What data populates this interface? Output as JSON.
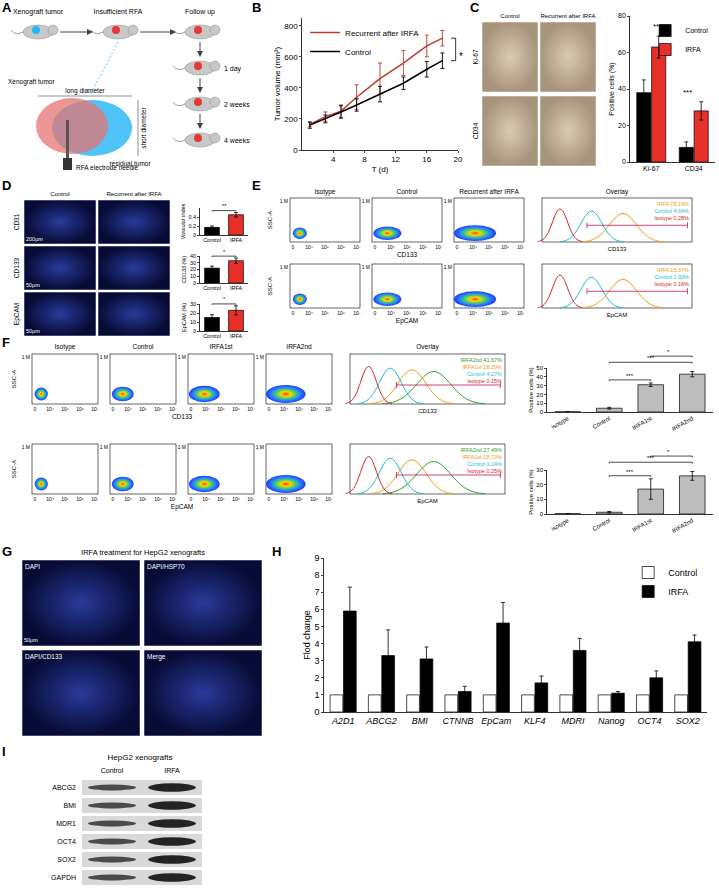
{
  "chart_data": [
    {
      "type": "line",
      "x_label": "T (d)",
      "y_label": "Tumor volume (mm³)",
      "x": [
        1,
        3,
        5,
        7,
        10,
        13,
        16,
        18
      ],
      "series": [
        {
          "name": "Recurrent after IRFA",
          "color": "#c0392b",
          "values": [
            165,
            215,
            250,
            340,
            460,
            560,
            670,
            720
          ],
          "errors": [
            15,
            30,
            40,
            80,
            100,
            80,
            70,
            50
          ]
        },
        {
          "name": "Control",
          "color": "#000000",
          "values": [
            160,
            200,
            245,
            290,
            360,
            430,
            520,
            575
          ],
          "errors": [
            20,
            25,
            40,
            40,
            50,
            40,
            50,
            50
          ]
        }
      ],
      "xlim": [
        0,
        20
      ],
      "xticks": [
        4,
        8,
        12,
        16,
        20
      ],
      "ylim": [
        0,
        850
      ],
      "yticks": [
        0,
        200,
        400,
        600,
        800
      ],
      "grid": false,
      "legend": "upper left",
      "annotations": [
        {
          "text": "*",
          "from": "Control",
          "to": "Recurrent after IRFA"
        }
      ]
    },
    {
      "type": "bar",
      "y_label": "Positive cells (%)",
      "categories": [
        "Ki-67",
        "CD34"
      ],
      "series": [
        {
          "name": "Control",
          "color": "#000000",
          "values": [
            38,
            8
          ],
          "errors": [
            7,
            3
          ]
        },
        {
          "name": "IRFA",
          "color": "#e8302a",
          "values": [
            63,
            28
          ],
          "errors": [
            6,
            5
          ]
        }
      ],
      "ylim": [
        0,
        80
      ],
      "yticks": [
        0,
        20,
        40,
        60,
        80
      ],
      "grid": false,
      "legend": "upper right",
      "annotations": [
        {
          "text": "**",
          "category": "Ki-67"
        },
        {
          "text": "***",
          "category": "CD34"
        }
      ]
    },
    {
      "type": "bar",
      "y_label": "Vascular index",
      "categories": [
        "Control",
        "IRFA"
      ],
      "values": [
        0.17,
        0.45
      ],
      "errors": [
        0.03,
        0.05
      ],
      "colors": [
        "#000000",
        "#e8302a"
      ],
      "ylim": [
        0,
        0.6
      ],
      "yticks": [
        0,
        0.2,
        0.4
      ],
      "grid": false,
      "annotations": [
        {
          "text": "**",
          "from": "Control",
          "to": "IRFA"
        }
      ]
    },
    {
      "type": "bar",
      "y_label": "CD133 (%)",
      "categories": [
        "Control",
        "IRFA"
      ],
      "values": [
        22,
        33
      ],
      "errors": [
        3,
        4
      ],
      "colors": [
        "#000000",
        "#e8302a"
      ],
      "ylim": [
        0,
        40
      ],
      "yticks": [
        0,
        10,
        20,
        30,
        40
      ],
      "grid": false,
      "annotations": [
        {
          "text": "*",
          "from": "Control",
          "to": "IRFA"
        }
      ]
    },
    {
      "type": "bar",
      "y_label": "EpCAM (%)",
      "categories": [
        "Control",
        "IRFA"
      ],
      "values": [
        15,
        23
      ],
      "errors": [
        3,
        5
      ],
      "colors": [
        "#000000",
        "#e8302a"
      ],
      "ylim": [
        0,
        30
      ],
      "yticks": [
        0,
        10,
        20,
        30
      ],
      "grid": false,
      "annotations": [
        {
          "text": "*",
          "from": "Control",
          "to": "IRFA"
        }
      ]
    },
    {
      "type": "bar",
      "y_label": "Positive cells (%)",
      "categories": [
        "isotype",
        "Control",
        "IRFA1st",
        "IRFA2nd"
      ],
      "values": [
        0.2,
        4.3,
        31,
        43
      ],
      "errors": [
        0.1,
        1,
        2,
        3
      ],
      "color": "#bdbdbd",
      "ylim": [
        0,
        50
      ],
      "yticks": [
        0,
        10,
        20,
        30,
        40,
        50
      ],
      "grid": false,
      "annotations": [
        {
          "text": "***",
          "from": "Control",
          "to": "IRFA1st"
        },
        {
          "text": "***",
          "from": "Control",
          "to": "IRFA2nd"
        },
        {
          "text": "*",
          "from": "IRFA1st",
          "to": "IRFA2nd"
        }
      ]
    },
    {
      "type": "bar",
      "y_label": "Positive cells (%)",
      "categories": [
        "isotype",
        "Control",
        "IRFA1st",
        "IRFA2nd"
      ],
      "values": [
        0.2,
        1.2,
        17,
        26
      ],
      "errors": [
        0.1,
        0.5,
        7,
        3
      ],
      "color": "#bdbdbd",
      "ylim": [
        0,
        30
      ],
      "yticks": [
        0,
        10,
        20,
        30
      ],
      "grid": false,
      "annotations": [
        {
          "text": "***",
          "from": "Control",
          "to": "IRFA1st"
        },
        {
          "text": "***",
          "from": "Control",
          "to": "IRFA2nd"
        },
        {
          "text": "*",
          "from": "IRFA1st",
          "to": "IRFA2nd"
        }
      ]
    },
    {
      "type": "bar",
      "y_label": "Flod change",
      "categories": [
        "A2D1",
        "ABCG2",
        "BMI",
        "CTNNB",
        "EpCam",
        "KLF4",
        "MDRI",
        "Nanog",
        "OCT4",
        "SOX2"
      ],
      "series": [
        {
          "name": "Control",
          "color": "#ffffff",
          "values": [
            1,
            1,
            1,
            1,
            1,
            1,
            1,
            1,
            1,
            1
          ]
        },
        {
          "name": "IRFA",
          "color": "#000000",
          "values": [
            5.9,
            3.3,
            3.1,
            1.2,
            5.2,
            1.7,
            3.6,
            1.1,
            2.0,
            4.1
          ],
          "errors": [
            1.4,
            1.5,
            0.7,
            0.3,
            1.2,
            0.4,
            0.7,
            0.1,
            0.4,
            0.4
          ]
        }
      ],
      "ylim": [
        0,
        9
      ],
      "yticks": [
        0,
        1,
        2,
        3,
        4,
        5,
        6,
        7,
        8,
        9
      ],
      "grid": false,
      "legend": "upper right"
    }
  ],
  "panel_labels": [
    "A",
    "B",
    "C",
    "D",
    "E",
    "F",
    "G",
    "H",
    "I"
  ],
  "diagram_A": {
    "steps": [
      "Xenograft tumor",
      "Insufficient RFA",
      "Follow up"
    ],
    "timepoints": [
      "1 day",
      "2 weeks",
      "4 weeks"
    ],
    "tumor_title": "Xenograft tumor",
    "long": "long diameter",
    "short": "short diameter",
    "residual": "residual tumor",
    "needle": "RFA electrode needle"
  },
  "images_C": {
    "columns": [
      "Control",
      "Recurrent after IRFA"
    ],
    "rows": [
      "Ki-67",
      "CD34"
    ]
  },
  "images_D": {
    "columns": [
      "Control",
      "Recurrent after IRFA"
    ],
    "rows": [
      "CD31",
      "CD133",
      "EpCAM"
    ],
    "scale_bars": [
      "200μm",
      "50μm",
      "50μm"
    ]
  },
  "flow_E": {
    "y_label": "SSC-A",
    "y_tick": "1 M",
    "x_ticks": [
      "0",
      "10⁴",
      "10⁵",
      "10⁶",
      "10⁷"
    ],
    "columns": [
      "Isotype",
      "Control",
      "Recurrent after IRFA"
    ],
    "overlay_title": "Overlay",
    "rows": [
      {
        "marker": "CD133",
        "overlay": [
          {
            "label": "IRFA 28.19%",
            "color": "#f39c12"
          },
          {
            "label": "Control 4.64%",
            "color": "#17becf"
          },
          {
            "label": "Isotype 0.28%",
            "color": "#d62728"
          }
        ]
      },
      {
        "marker": "EpCAM",
        "overlay": [
          {
            "label": "IRFA 15.37%",
            "color": "#f39c12"
          },
          {
            "label": "Control 1.93%",
            "color": "#17becf"
          },
          {
            "label": "Isotype 0.16%",
            "color": "#d62728"
          }
        ]
      }
    ]
  },
  "flow_F": {
    "y_label": "SSC-A",
    "y_tick": "1 M",
    "x_ticks": [
      "0",
      "10⁴",
      "10⁵",
      "10⁶",
      "10⁷"
    ],
    "columns": [
      "Isotype",
      "Control",
      "IRFA1st",
      "IRFA2nd"
    ],
    "overlay_title": "Overlay",
    "rows": [
      {
        "marker": "CD133",
        "overlay": [
          {
            "label": "IRFA2nd 41.67%",
            "color": "#2ca02c"
          },
          {
            "label": "IRFA1st 28.29%",
            "color": "#f39c12"
          },
          {
            "label": "Control 4.27%",
            "color": "#17becf"
          },
          {
            "label": "Isotype 0.15%",
            "color": "#d62728"
          }
        ]
      },
      {
        "marker": "EpCAM",
        "overlay": [
          {
            "label": "IRFA2nd 27.49%",
            "color": "#2ca02c"
          },
          {
            "label": "IRFA1st 18.73%",
            "color": "#f39c12"
          },
          {
            "label": "Control 1.24%",
            "color": "#17becf"
          },
          {
            "label": "Isotype 0.25%",
            "color": "#d62728"
          }
        ]
      }
    ]
  },
  "images_G": {
    "title": "IRFA treatment for HepG2 xenografts",
    "tiles": [
      "DAPI",
      "DAPI/HSP70",
      "DAPI/CD133",
      "Merge"
    ],
    "scale_bar": "50μm"
  },
  "blot_I": {
    "title": "HepG2 xenografts",
    "columns": [
      "Control",
      "IRFA"
    ],
    "rows": [
      "ABCG2",
      "BMI",
      "MDR1",
      "OCT4",
      "SOX2",
      "GAPDH"
    ]
  }
}
